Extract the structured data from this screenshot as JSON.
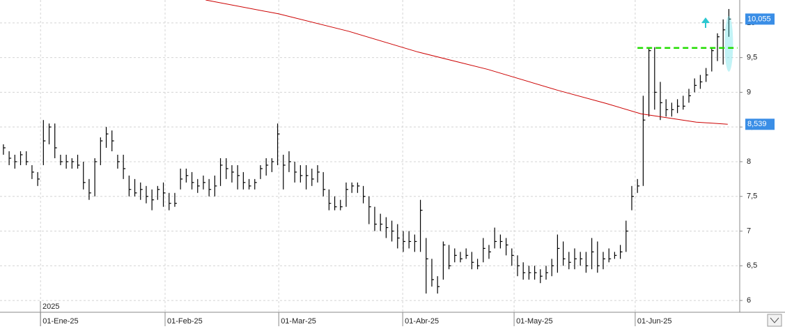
{
  "chart_data": {
    "type": "ohlc",
    "color": "#000000",
    "x": [
      0,
      1,
      2,
      3,
      4,
      5,
      6,
      7,
      8,
      9,
      10,
      11,
      12,
      13,
      14,
      15,
      16,
      17,
      18,
      19,
      20,
      21,
      22,
      23,
      24,
      25,
      26,
      27,
      28,
      29,
      30,
      31,
      32,
      33,
      34,
      35,
      36,
      37,
      38,
      39,
      40,
      41,
      42,
      43,
      44,
      45,
      46,
      47,
      48,
      49,
      50,
      51,
      52,
      53,
      54,
      55,
      56,
      57,
      58,
      59,
      60,
      61,
      62,
      63,
      64,
      65,
      66,
      67,
      68,
      69,
      70,
      71,
      72,
      73,
      74,
      75,
      76,
      77,
      78,
      79,
      80,
      81,
      82,
      83,
      84,
      85,
      86,
      87,
      88,
      89,
      90,
      91,
      92,
      93,
      94,
      95,
      96,
      97,
      98,
      99,
      100,
      101,
      102,
      103,
      104,
      105,
      106,
      107,
      108,
      109,
      110,
      111,
      112,
      113,
      114,
      115,
      116,
      117,
      118,
      119,
      120,
      121,
      122,
      123,
      124,
      125,
      126,
      127
    ],
    "high": [
      8.25,
      8.15,
      8.1,
      8.15,
      8.15,
      7.95,
      7.85,
      8.6,
      8.55,
      8.55,
      8.1,
      8.1,
      8.05,
      8.1,
      8.0,
      7.75,
      8.05,
      8.35,
      8.5,
      8.45,
      8.1,
      8.1,
      7.8,
      7.75,
      7.7,
      7.65,
      7.6,
      7.65,
      7.7,
      7.55,
      7.55,
      7.9,
      7.9,
      7.85,
      7.75,
      7.8,
      7.75,
      7.8,
      8.05,
      8.05,
      7.95,
      7.95,
      7.85,
      7.75,
      7.75,
      7.95,
      8.05,
      8.05,
      8.55,
      8.1,
      8.15,
      8.0,
      7.95,
      7.95,
      7.9,
      7.95,
      7.85,
      7.6,
      7.5,
      7.45,
      7.7,
      7.7,
      7.7,
      7.65,
      7.5,
      7.35,
      7.25,
      7.2,
      7.15,
      7.1,
      7.0,
      7.0,
      6.95,
      7.45,
      6.9,
      6.6,
      6.35,
      6.85,
      6.8,
      6.75,
      6.7,
      6.75,
      6.7,
      6.6,
      6.9,
      6.8,
      7.05,
      6.95,
      6.9,
      6.75,
      6.65,
      6.55,
      6.5,
      6.5,
      6.45,
      6.5,
      6.6,
      6.95,
      6.85,
      6.7,
      6.75,
      6.7,
      6.7,
      6.9,
      6.85,
      6.7,
      6.75,
      6.7,
      6.8,
      7.15,
      7.65,
      7.75,
      8.95,
      9.65,
      9.65,
      9.15,
      8.9,
      8.85,
      8.9,
      8.95,
      9.05,
      9.2,
      9.25,
      9.35,
      9.65,
      9.85,
      10.05,
      10.2
    ],
    "low": [
      8.1,
      7.95,
      7.9,
      7.95,
      7.95,
      7.75,
      7.65,
      7.95,
      8.25,
      8.05,
      7.95,
      7.9,
      7.9,
      7.9,
      7.6,
      7.45,
      7.5,
      7.95,
      8.2,
      8.15,
      7.9,
      7.75,
      7.5,
      7.5,
      7.45,
      7.4,
      7.3,
      7.45,
      7.35,
      7.3,
      7.35,
      7.6,
      7.7,
      7.6,
      7.55,
      7.6,
      7.5,
      7.5,
      7.65,
      7.75,
      7.7,
      7.6,
      7.6,
      7.6,
      7.6,
      7.75,
      7.8,
      7.85,
      7.95,
      7.6,
      7.85,
      7.7,
      7.7,
      7.6,
      7.65,
      7.7,
      7.5,
      7.3,
      7.3,
      7.3,
      7.35,
      7.55,
      7.55,
      7.4,
      7.1,
      7.0,
      7.0,
      6.9,
      6.85,
      6.75,
      6.7,
      6.75,
      6.7,
      6.7,
      6.1,
      6.2,
      6.1,
      6.3,
      6.45,
      6.55,
      6.55,
      6.6,
      6.45,
      6.45,
      6.55,
      6.6,
      6.75,
      6.75,
      6.65,
      6.5,
      6.35,
      6.3,
      6.3,
      6.3,
      6.25,
      6.3,
      6.35,
      6.4,
      6.5,
      6.45,
      6.45,
      6.5,
      6.4,
      6.45,
      6.4,
      6.45,
      6.55,
      6.6,
      6.6,
      6.7,
      7.3,
      7.55,
      7.65,
      8.65,
      8.75,
      8.6,
      8.65,
      8.65,
      8.7,
      8.75,
      8.85,
      9.0,
      9.05,
      9.15,
      9.3,
      9.45,
      9.4,
      9.8
    ],
    "close": [
      8.2,
      8.05,
      8.0,
      8.1,
      8.0,
      7.85,
      7.75,
      8.3,
      8.5,
      8.2,
      8.0,
      8.0,
      8.0,
      7.95,
      7.7,
      7.55,
      8.0,
      8.3,
      8.4,
      8.3,
      8.0,
      7.9,
      7.6,
      7.55,
      7.6,
      7.5,
      7.45,
      7.6,
      7.55,
      7.4,
      7.4,
      7.75,
      7.8,
      7.7,
      7.65,
      7.7,
      7.6,
      7.65,
      7.95,
      7.9,
      7.85,
      7.8,
      7.7,
      7.65,
      7.7,
      7.9,
      7.95,
      8.0,
      8.4,
      7.95,
      8.0,
      7.85,
      7.8,
      7.8,
      7.75,
      7.85,
      7.6,
      7.4,
      7.35,
      7.35,
      7.6,
      7.65,
      7.65,
      7.5,
      7.35,
      7.1,
      7.1,
      7.05,
      7.0,
      6.9,
      6.85,
      6.85,
      6.85,
      7.3,
      6.6,
      6.3,
      6.2,
      6.8,
      6.5,
      6.65,
      6.6,
      6.65,
      6.55,
      6.5,
      6.75,
      6.7,
      6.85,
      6.85,
      6.8,
      6.65,
      6.5,
      6.4,
      6.4,
      6.4,
      6.35,
      6.4,
      6.5,
      6.75,
      6.6,
      6.55,
      6.6,
      6.6,
      6.5,
      6.7,
      6.5,
      6.6,
      6.6,
      6.65,
      6.7,
      7.0,
      7.5,
      7.65,
      8.6,
      9.6,
      9.0,
      8.85,
      8.75,
      8.75,
      8.8,
      8.8,
      8.95,
      9.1,
      9.15,
      9.25,
      9.6,
      9.8,
      9.9,
      10.055
    ],
    "moving_average": {
      "color": "#cc0000",
      "x": [
        35.4,
        48.2,
        60.4,
        72.6,
        84.8,
        97,
        105.5,
        111.6,
        121.3,
        126.8
      ],
      "values": [
        10.33,
        10.13,
        9.88,
        9.58,
        9.33,
        9.03,
        8.84,
        8.69,
        8.57,
        8.54
      ]
    },
    "resistance": {
      "color": "#22dd00",
      "value": 9.64,
      "x": [
        111,
        128.5
      ]
    },
    "price_labels": [
      {
        "value": 10.055,
        "label": "10,055"
      },
      {
        "value": 8.539,
        "label": "8,539"
      }
    ],
    "year_label": "2025",
    "xlim": [
      -0.6,
      128.9
    ],
    "ylim": [
      5.83,
      10.33
    ],
    "xticks": [
      {
        "value": 6.5,
        "label": "01-Ene-25"
      },
      {
        "value": 28.3,
        "label": "01-Feb-25"
      },
      {
        "value": 48.2,
        "label": "01-Mar-25"
      },
      {
        "value": 69.9,
        "label": "01-Abr-25"
      },
      {
        "value": 89.4,
        "label": "01-May-25"
      },
      {
        "value": 110.6,
        "label": "01-Jun-25"
      }
    ],
    "yticks": [
      6,
      {
        "value": 6.5,
        "label": "6,5"
      },
      7,
      {
        "value": 7.5,
        "label": "7,5"
      },
      8,
      {
        "value": 8.5,
        "label": "8,5"
      },
      9,
      {
        "value": 9.5,
        "label": "9,5"
      },
      10
    ],
    "grid": true
  }
}
